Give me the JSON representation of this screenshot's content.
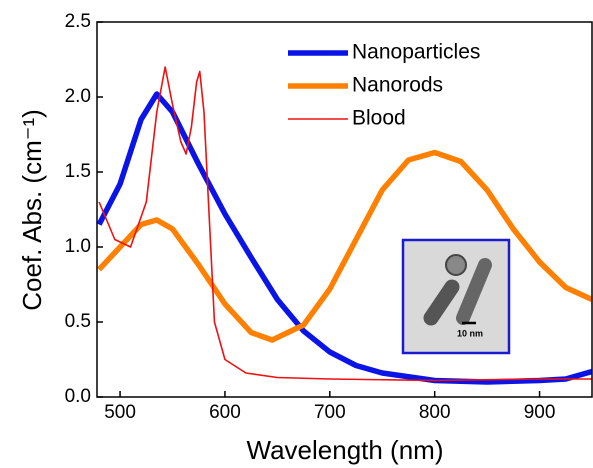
{
  "chart_data": {
    "type": "line",
    "x_label": "Wavelength  (nm)",
    "y_label": "Coef. Abs. (cm⁻¹)",
    "xlim": [
      478,
      950
    ],
    "xticks": [
      500,
      600,
      700,
      800,
      900
    ],
    "ylim": [
      0,
      2.5
    ],
    "yticks": [
      {
        "value": 0,
        "label": "0.0"
      },
      0.5,
      {
        "value": 1,
        "label": "1.0"
      },
      1.5,
      {
        "value": 2,
        "label": "2.0"
      },
      2.5
    ],
    "grid": false,
    "legend": "upper right",
    "inset_label": "10 nm",
    "series": [
      {
        "name": "Nanoparticles",
        "color": "#0a14e6",
        "x": [
          480,
          500,
          520,
          535,
          550,
          575,
          600,
          625,
          650,
          675,
          700,
          725,
          750,
          800,
          850,
          900,
          925,
          950
        ],
        "values": [
          1.15,
          1.42,
          1.85,
          2.02,
          1.9,
          1.55,
          1.22,
          0.93,
          0.65,
          0.44,
          0.3,
          0.21,
          0.16,
          0.11,
          0.1,
          0.11,
          0.12,
          0.17
        ]
      },
      {
        "name": "Nanorods",
        "color": "#ff8000",
        "x": [
          480,
          500,
          520,
          535,
          550,
          575,
          600,
          625,
          645,
          675,
          700,
          725,
          750,
          775,
          800,
          825,
          850,
          875,
          900,
          925,
          950
        ],
        "values": [
          0.85,
          1.0,
          1.15,
          1.18,
          1.12,
          0.88,
          0.62,
          0.43,
          0.38,
          0.48,
          0.72,
          1.05,
          1.38,
          1.58,
          1.63,
          1.57,
          1.38,
          1.12,
          0.9,
          0.73,
          0.65
        ]
      },
      {
        "name": "Blood",
        "color": "#ee1111",
        "x": [
          480,
          495,
          510,
          525,
          535,
          543,
          550,
          558,
          563,
          568,
          573,
          576,
          580,
          585,
          590,
          600,
          620,
          650,
          700,
          800,
          900,
          950
        ],
        "values": [
          1.3,
          1.05,
          1.0,
          1.3,
          1.9,
          2.2,
          1.95,
          1.7,
          1.62,
          1.8,
          2.1,
          2.17,
          1.9,
          1.2,
          0.5,
          0.25,
          0.16,
          0.13,
          0.12,
          0.11,
          0.12,
          0.12
        ]
      }
    ]
  }
}
